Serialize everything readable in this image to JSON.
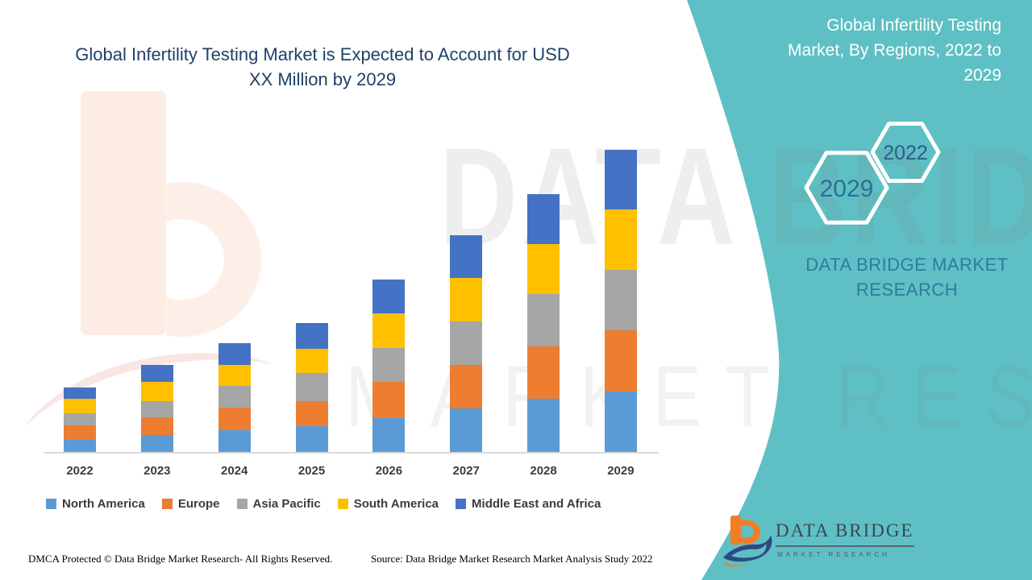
{
  "chart": {
    "title_lines": [
      "Global Infertility Testing Market is Expected to Account for USD",
      "XX Million by 2029"
    ]
  },
  "chart_data": {
    "type": "bar",
    "stacked": true,
    "title": "Global Infertility Testing Market is Expected to Account for USD XX Million by 2029",
    "categories": [
      "2022",
      "2023",
      "2024",
      "2025",
      "2026",
      "2027",
      "2028",
      "2029"
    ],
    "series": [
      {
        "name": "North America",
        "color": "#5B9BD5",
        "values": [
          4.0,
          5.6,
          7.1,
          8.5,
          11.3,
          14.4,
          17.6,
          20.1
        ]
      },
      {
        "name": "Europe",
        "color": "#ED7D31",
        "values": [
          4.7,
          5.8,
          7.5,
          8.3,
          11.8,
          14.4,
          17.3,
          20.1
        ]
      },
      {
        "name": "Asia Pacific",
        "color": "#A6A6A6",
        "values": [
          4.0,
          5.3,
          7.2,
          9.3,
          11.3,
          14.3,
          17.3,
          20.0
        ]
      },
      {
        "name": "South America",
        "color": "#FFC000",
        "values": [
          4.9,
          6.5,
          7.1,
          8.1,
          11.4,
          14.4,
          16.7,
          20.0
        ]
      },
      {
        "name": "Middle East and Africa",
        "color": "#4472C4",
        "values": [
          3.7,
          5.7,
          7.0,
          8.6,
          11.4,
          14.2,
          16.4,
          19.7
        ]
      }
    ],
    "xlabel": "",
    "ylabel": "",
    "y_axis_labels_visible": false,
    "values_unit": "relative index estimated from bar heights (2029 total = 100); y-axis unlabeled, values shown as USD XX Million",
    "legend_position": "bottom",
    "grid": false
  },
  "sidebar": {
    "heading_lines": [
      "Global Infertility Testing",
      "Market, By Regions, 2022 to",
      "2029"
    ],
    "hexagons": [
      {
        "label": "2022"
      },
      {
        "label": "2029"
      }
    ],
    "brand_lines": [
      "DATA BRIDGE MARKET",
      "RESEARCH"
    ],
    "logo": {
      "wordmark": "DATA BRIDGE",
      "subtext": "MARKET RESEARCH"
    },
    "panel_color": "#5EC0C4"
  },
  "watermark": {
    "line1": "DATA BRIDGE",
    "line2": "MARKET RESEARCH"
  },
  "footer": {
    "dmca": "DMCA Protected © Data Bridge Market Research- All Rights Reserved.",
    "source": "Source: Data Bridge Market Research Market Analysis Study 2022"
  }
}
